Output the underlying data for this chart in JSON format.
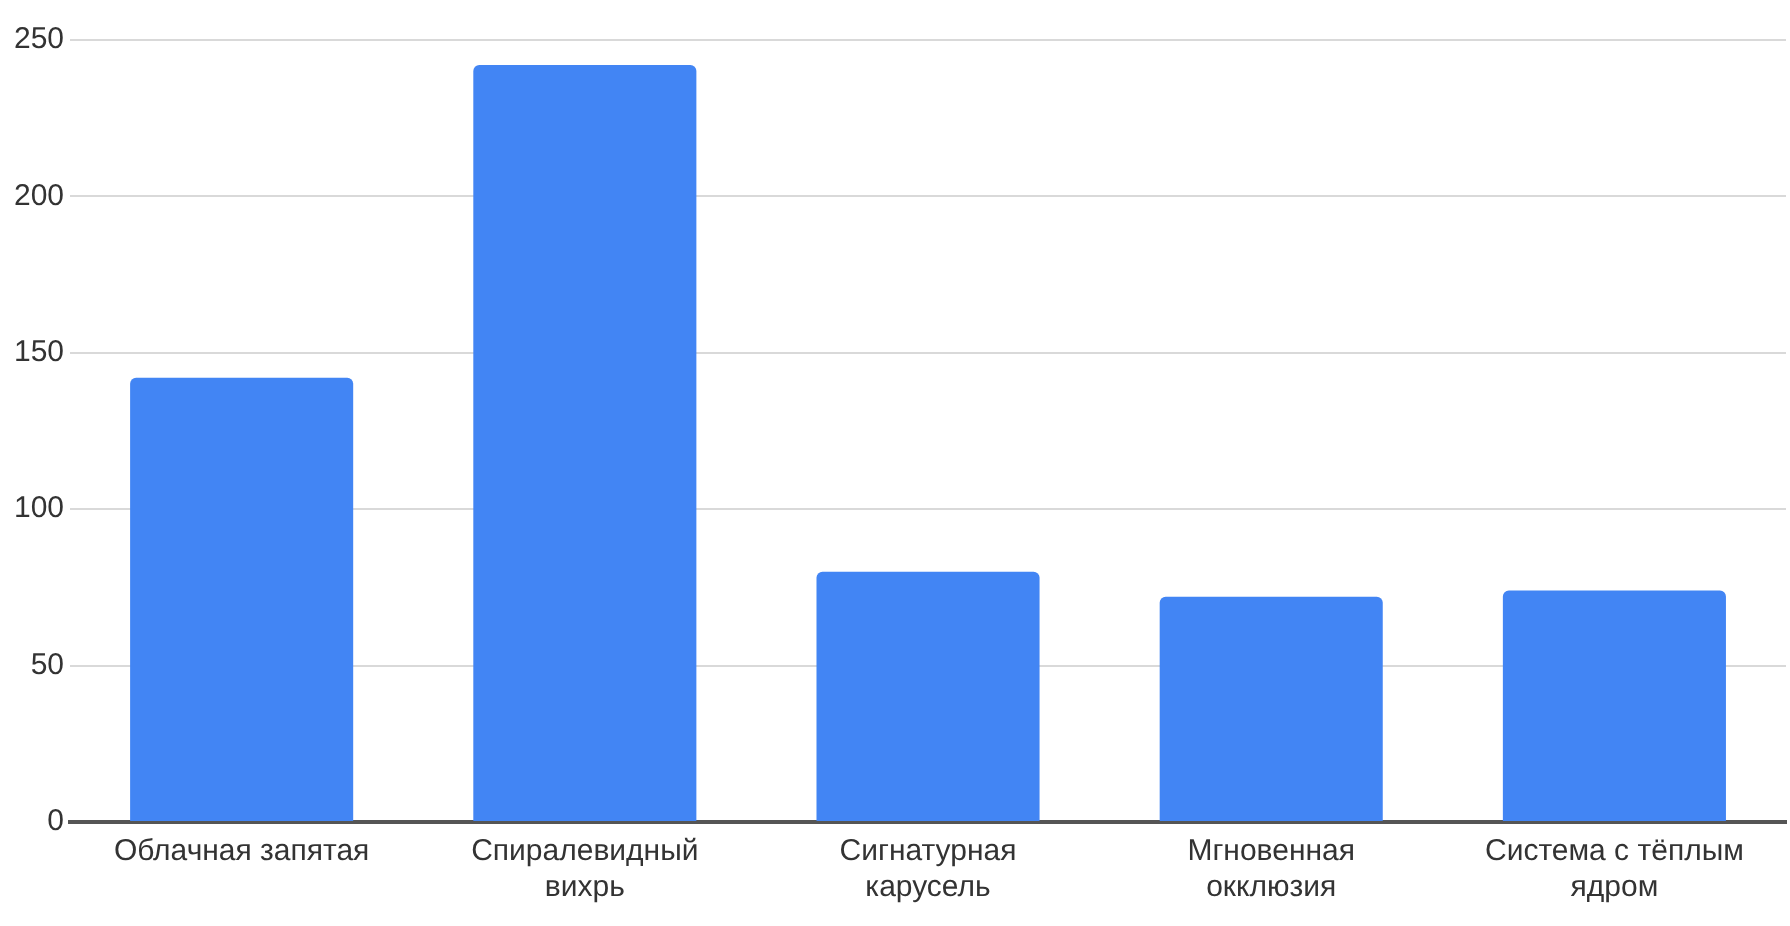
{
  "chart_data": {
    "type": "bar",
    "categories": [
      "Облачная запятая",
      "Спиралевидный вихрь",
      "Сигнатурная карусель",
      "Мгновенная окклюзия",
      "Система с тёплым ядром"
    ],
    "values": [
      142,
      242,
      80,
      72,
      74
    ],
    "color": "#4285f4",
    "ylim": [
      0,
      250
    ],
    "yticks": [
      0,
      50,
      100,
      150,
      200,
      250
    ],
    "grid": "y",
    "legend": false
  }
}
